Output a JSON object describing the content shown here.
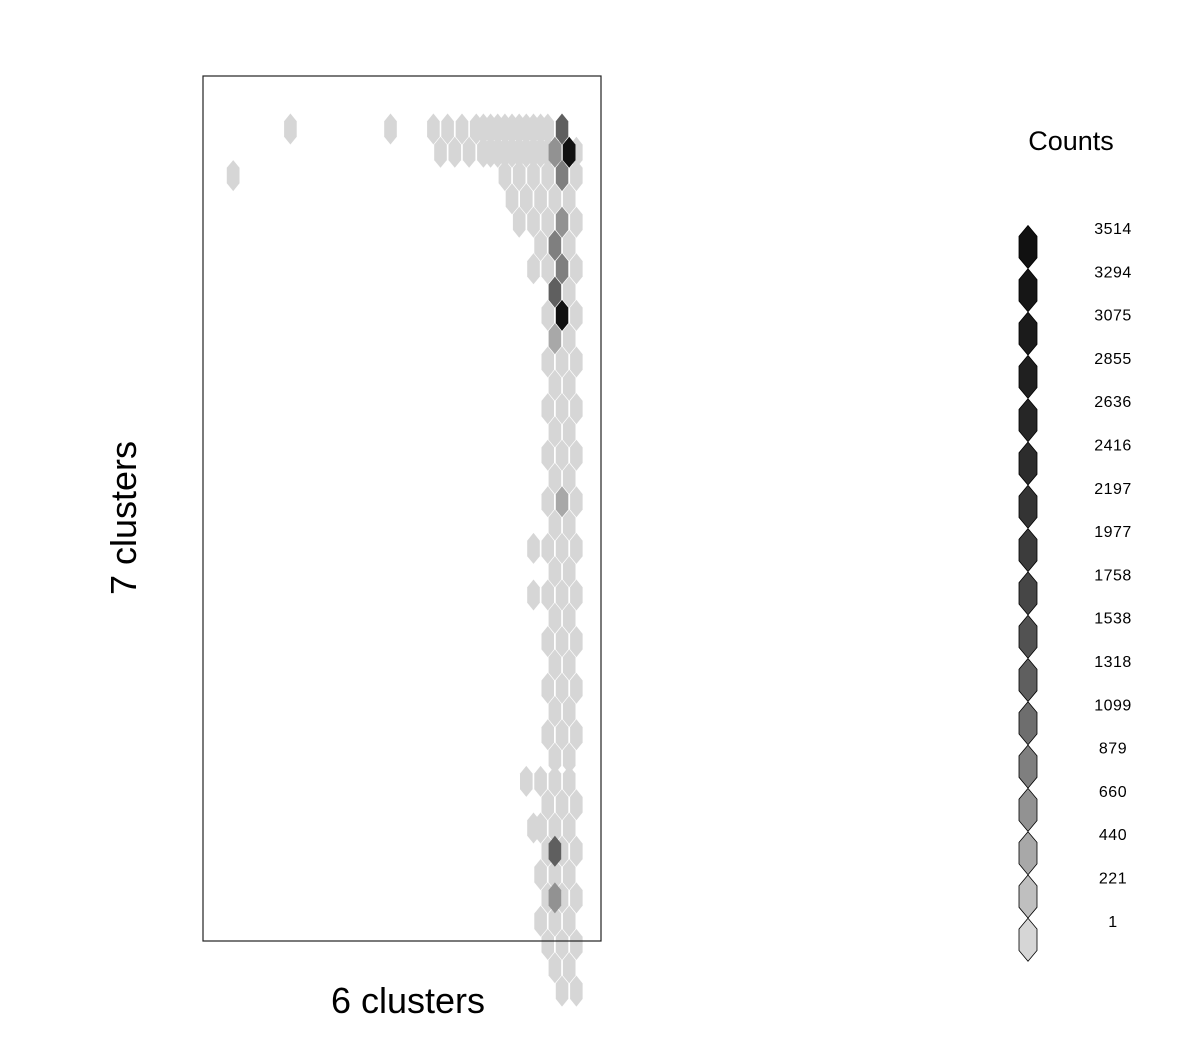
{
  "chart_data": {
    "type": "heatmap",
    "subtype": "hexbin",
    "xlabel": "6 clusters",
    "ylabel": "7 clusters",
    "legend_title": "Counts",
    "legend_labels": [
      "3514",
      "3294",
      "3075",
      "2855",
      "2636",
      "2416",
      "2197",
      "1977",
      "1758",
      "1538",
      "1318",
      "1099",
      "879",
      "660",
      "440",
      "221",
      "1"
    ],
    "legend_colors": [
      "#111111",
      "#161616",
      "#1b1b1b",
      "#202020",
      "#262626",
      "#2c2c2c",
      "#343434",
      "#3c3c3c",
      "#464646",
      "#525252",
      "#5f5f5f",
      "#6e6e6e",
      "#7f7f7f",
      "#929292",
      "#a8a8a8",
      "#bfbfbf",
      "#d6d6d6"
    ],
    "cells": [
      {
        "col": 9,
        "row": 0,
        "count": 1
      },
      {
        "col": 23,
        "row": 0,
        "count": 1
      },
      {
        "col": 29,
        "row": 0,
        "count": 1
      },
      {
        "col": 30,
        "row": 1,
        "count": 1
      },
      {
        "col": 36,
        "row": 0,
        "count": 1
      },
      {
        "col": 37,
        "row": 1,
        "count": 1
      },
      {
        "col": 1,
        "row": 2,
        "count": 1
      },
      {
        "col": 39,
        "row": 2,
        "count": 1
      },
      {
        "col": 41,
        "row": 4,
        "count": 1
      },
      {
        "col": 43,
        "row": 6,
        "count": 1
      },
      {
        "col": 45,
        "row": 8,
        "count": 1
      },
      {
        "col": 45,
        "row": 10,
        "count": 1
      },
      {
        "col": 43,
        "row": 18,
        "count": 1
      },
      {
        "col": 43,
        "row": 20,
        "count": 1
      },
      {
        "col": 42,
        "row": 28,
        "count": 1
      },
      {
        "col": 43,
        "row": 30,
        "count": 1
      }
    ],
    "bands": [
      {
        "row": 0,
        "from": 31,
        "to": 47,
        "step": 2
      },
      {
        "row": 0,
        "from": 38,
        "to": 44,
        "step": 2
      },
      {
        "row": 1,
        "from": 32,
        "to": 48,
        "step": 2
      },
      {
        "row": 1,
        "from": 39,
        "to": 49,
        "step": 2
      },
      {
        "row": 2,
        "from": 39,
        "to": 49,
        "step": 2
      },
      {
        "row": 3,
        "from": 40,
        "to": 48,
        "step": 2
      },
      {
        "row": 4,
        "from": 43,
        "to": 49,
        "step": 2
      },
      {
        "row": 5,
        "from": 44,
        "to": 48,
        "step": 2
      },
      {
        "row": 6,
        "from": 45,
        "to": 49,
        "step": 2
      },
      {
        "row": 7,
        "from": 46,
        "to": 48,
        "step": 2
      },
      {
        "row": 8,
        "from": 45,
        "to": 49,
        "step": 2
      },
      {
        "row": 9,
        "from": 46,
        "to": 48,
        "step": 2
      },
      {
        "row": 10,
        "from": 45,
        "to": 49,
        "step": 2
      },
      {
        "row": 11,
        "from": 46,
        "to": 48,
        "step": 2
      },
      {
        "row": 12,
        "from": 45,
        "to": 49,
        "step": 2
      },
      {
        "row": 13,
        "from": 46,
        "to": 48,
        "step": 2
      },
      {
        "row": 14,
        "from": 45,
        "to": 49,
        "step": 2
      },
      {
        "row": 15,
        "from": 46,
        "to": 48,
        "step": 2
      },
      {
        "row": 16,
        "from": 45,
        "to": 49,
        "step": 2
      },
      {
        "row": 17,
        "from": 46,
        "to": 48,
        "step": 2
      },
      {
        "row": 18,
        "from": 45,
        "to": 49,
        "step": 2
      },
      {
        "row": 19,
        "from": 46,
        "to": 48,
        "step": 2
      },
      {
        "row": 20,
        "from": 45,
        "to": 49,
        "step": 2
      },
      {
        "row": 21,
        "from": 46,
        "to": 48,
        "step": 2
      },
      {
        "row": 22,
        "from": 45,
        "to": 49,
        "step": 2
      },
      {
        "row": 23,
        "from": 46,
        "to": 48,
        "step": 2
      },
      {
        "row": 24,
        "from": 45,
        "to": 49,
        "step": 2
      },
      {
        "row": 25,
        "from": 46,
        "to": 48,
        "step": 2
      },
      {
        "row": 26,
        "from": 45,
        "to": 49,
        "step": 2
      },
      {
        "row": 27,
        "from": 46,
        "to": 48,
        "step": 2
      },
      {
        "row": 28,
        "from": 44,
        "to": 48,
        "step": 2
      },
      {
        "row": 29,
        "from": 45,
        "to": 49,
        "step": 2
      },
      {
        "row": 30,
        "from": 44,
        "to": 48,
        "step": 2
      },
      {
        "row": 31,
        "from": 45,
        "to": 49,
        "step": 2
      },
      {
        "row": 32,
        "from": 44,
        "to": 48,
        "step": 2
      },
      {
        "row": 33,
        "from": 45,
        "to": 49,
        "step": 2
      },
      {
        "row": 34,
        "from": 44,
        "to": 48,
        "step": 2
      },
      {
        "row": 35,
        "from": 45,
        "to": 49,
        "step": 2
      },
      {
        "row": 36,
        "from": 46,
        "to": 48,
        "step": 2
      },
      {
        "row": 37,
        "from": 47,
        "to": 49,
        "step": 2
      }
    ],
    "highlights": [
      {
        "col": 47,
        "row": 0,
        "count": 1318
      },
      {
        "col": 46,
        "row": 1,
        "count": 660
      },
      {
        "col": 48,
        "row": 1,
        "count": 3514
      },
      {
        "col": 47,
        "row": 2,
        "count": 879
      },
      {
        "col": 47,
        "row": 4,
        "count": 660
      },
      {
        "col": 46,
        "row": 5,
        "count": 879
      },
      {
        "col": 47,
        "row": 6,
        "count": 879
      },
      {
        "col": 46,
        "row": 7,
        "count": 1318
      },
      {
        "col": 47,
        "row": 8,
        "count": 3514
      },
      {
        "col": 46,
        "row": 9,
        "count": 440
      },
      {
        "col": 47,
        "row": 16,
        "count": 440
      },
      {
        "col": 46,
        "row": 31,
        "count": 1318
      },
      {
        "col": 46,
        "row": 33,
        "count": 660
      }
    ]
  }
}
